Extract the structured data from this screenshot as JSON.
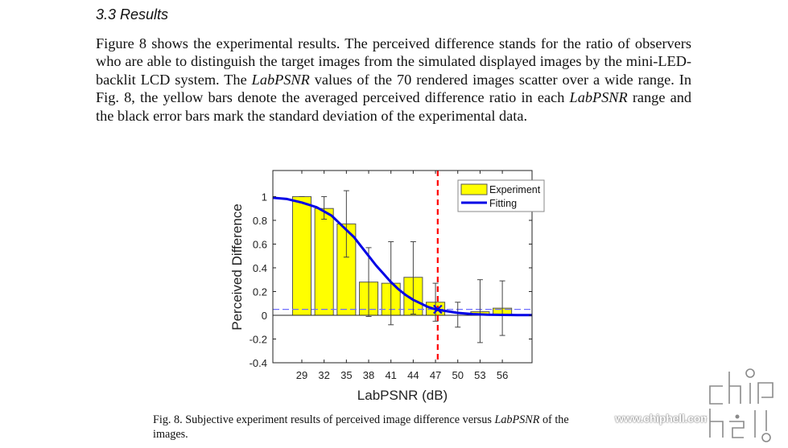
{
  "section": {
    "heading": "3.3 Results",
    "paragraph": [
      {
        "text": "Figure 8 shows the experimental results. The perceived difference stands for the ratio of observers who are able to distinguish the target images from the simulated displayed images by the mini-LED-backlit LCD system. The ",
        "italic": false
      },
      {
        "text": "LabPSNR",
        "italic": true
      },
      {
        "text": " values of the 70 rendered images scatter over a wide range. In Fig. 8, the yellow bars denote the averaged perceived difference ratio in each ",
        "italic": false
      },
      {
        "text": "LabPSNR",
        "italic": true
      },
      {
        "text": " range and the black error bars mark the standard deviation of the experimental data.",
        "italic": false
      }
    ]
  },
  "caption": {
    "prefix": "Fig. 8. Subjective experiment results of perceived image difference versus ",
    "italic": "LabPSNR",
    "suffix": " of the",
    "line2": "images."
  },
  "watermark": {
    "text": "www.chiphell.com",
    "logo": "chiphell"
  },
  "chart_data": {
    "type": "bar",
    "title": "",
    "xlabel": "LabPSNR (dB)",
    "ylabel": "Perceived Difference",
    "xlim": [
      25.1,
      60
    ],
    "ylim": [
      -0.4,
      1.22
    ],
    "xticks": [
      29,
      32,
      35,
      38,
      41,
      44,
      47,
      50,
      53,
      56
    ],
    "yticks": [
      -0.4,
      -0.2,
      0,
      0.2,
      0.4,
      0.6,
      0.8,
      1
    ],
    "ytick_labels": [
      "-0.4",
      "-0.2",
      "0",
      "0.2",
      "0.4",
      "0.6",
      "0.8",
      "1"
    ],
    "grid": false,
    "legend": {
      "position": "top-right",
      "entries": [
        "Experiment",
        "Fitting"
      ]
    },
    "colors": {
      "bar": "#ffff00",
      "bar_edge": "#555555",
      "fit": "#0000e6",
      "threshold": "#ff0000",
      "reference": "#6f6fff",
      "errorbar": "#444444"
    },
    "bar_width_db": 2.5,
    "series": [
      {
        "name": "Experiment",
        "type": "bar",
        "x": [
          29,
          32,
          35,
          38,
          41,
          44,
          47,
          50,
          53,
          56
        ],
        "values": [
          1.0,
          0.9,
          0.77,
          0.28,
          0.27,
          0.32,
          0.11,
          0.0,
          0.03,
          0.06
        ],
        "error_low": [
          1.0,
          0.81,
          0.49,
          -0.01,
          -0.08,
          0.01,
          -0.05,
          -0.1,
          -0.23,
          -0.17
        ],
        "error_high": [
          1.0,
          1.0,
          1.05,
          0.57,
          0.62,
          0.62,
          0.27,
          0.11,
          0.3,
          0.29
        ]
      },
      {
        "name": "Fitting",
        "type": "line",
        "x": [
          25.1,
          27,
          29,
          31,
          33,
          35,
          36,
          37,
          38,
          39,
          40,
          41,
          42,
          43,
          44,
          45,
          46,
          47,
          48,
          50,
          52,
          54,
          56,
          58,
          60
        ],
        "values": [
          0.99,
          0.98,
          0.95,
          0.91,
          0.84,
          0.72,
          0.66,
          0.58,
          0.5,
          0.42,
          0.35,
          0.28,
          0.22,
          0.17,
          0.13,
          0.1,
          0.07,
          0.05,
          0.04,
          0.02,
          0.01,
          0.005,
          0.003,
          0.002,
          0.001
        ]
      }
    ],
    "annotations": {
      "threshold_x": 47.3,
      "reference_y": 0.05,
      "marker": {
        "x": 47.3,
        "y": 0.05,
        "symbol": "x"
      }
    }
  }
}
